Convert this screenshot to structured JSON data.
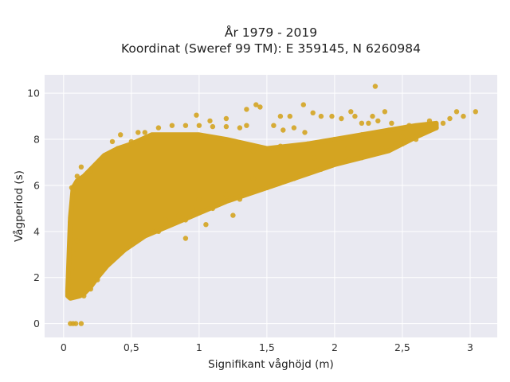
{
  "chart_data": {
    "type": "scatter",
    "title_lines": [
      "År 1979 - 2019",
      "Koordinat (Sweref 99 TM): E 359145, N 6260984"
    ],
    "xlabel": "Signifikant våghöjd (m)",
    "ylabel": "Vågperiod (s)",
    "xlim": [
      -0.14,
      3.2
    ],
    "ylim": [
      -0.6,
      10.8
    ],
    "x_ticks": [
      0,
      0.5,
      1,
      1.5,
      2,
      2.5,
      3
    ],
    "x_tick_labels": [
      "0",
      "0,5",
      "1",
      "1,5",
      "2",
      "2,5",
      "3"
    ],
    "y_ticks": [
      0,
      2,
      4,
      6,
      8,
      10
    ],
    "y_tick_labels": [
      "0",
      "2",
      "4",
      "6",
      "8",
      "10"
    ],
    "grid": true,
    "marker_color": "#D4A421",
    "plot_background": "#E9E9F1",
    "points": [
      [
        0.05,
        0.0
      ],
      [
        0.07,
        0.0
      ],
      [
        0.09,
        0.0
      ],
      [
        0.13,
        0.0
      ],
      [
        0.04,
        1.3
      ],
      [
        0.05,
        1.8
      ],
      [
        0.06,
        2.4
      ],
      [
        0.08,
        3.0
      ],
      [
        0.1,
        3.6
      ],
      [
        0.05,
        4.4
      ],
      [
        0.07,
        5.2
      ],
      [
        0.06,
        5.9
      ],
      [
        0.1,
        6.4
      ],
      [
        0.13,
        6.8
      ],
      [
        0.15,
        1.2
      ],
      [
        0.2,
        1.5
      ],
      [
        0.25,
        1.9
      ],
      [
        0.3,
        2.4
      ],
      [
        0.2,
        6.6
      ],
      [
        0.3,
        7.2
      ],
      [
        0.4,
        7.6
      ],
      [
        0.5,
        7.9
      ],
      [
        0.6,
        8.3
      ],
      [
        0.7,
        8.5
      ],
      [
        0.8,
        8.6
      ],
      [
        0.9,
        8.6
      ],
      [
        1.0,
        8.6
      ],
      [
        1.1,
        8.55
      ],
      [
        1.2,
        8.55
      ],
      [
        1.3,
        8.5
      ],
      [
        1.35,
        8.6
      ],
      [
        0.5,
        3.6
      ],
      [
        0.7,
        4.0
      ],
      [
        0.9,
        4.5
      ],
      [
        1.1,
        5.0
      ],
      [
        1.3,
        5.4
      ],
      [
        1.5,
        5.9
      ],
      [
        1.7,
        6.3
      ],
      [
        1.9,
        6.7
      ],
      [
        2.1,
        7.1
      ],
      [
        2.3,
        7.4
      ],
      [
        2.5,
        7.8
      ],
      [
        2.6,
        8.0
      ],
      [
        1.4,
        7.5
      ],
      [
        1.6,
        7.7
      ],
      [
        1.8,
        7.8
      ],
      [
        2.0,
        8.0
      ],
      [
        2.2,
        8.2
      ],
      [
        2.4,
        8.4
      ],
      [
        2.55,
        8.6
      ],
      [
        2.7,
        8.8
      ],
      [
        2.85,
        8.9
      ],
      [
        2.95,
        9.0
      ],
      [
        2.9,
        9.2
      ],
      [
        3.04,
        9.2
      ],
      [
        0.98,
        9.05
      ],
      [
        1.08,
        8.8
      ],
      [
        1.2,
        8.9
      ],
      [
        1.35,
        9.3
      ],
      [
        1.42,
        9.5
      ],
      [
        1.45,
        9.4
      ],
      [
        1.6,
        9.0
      ],
      [
        1.67,
        9.0
      ],
      [
        1.77,
        9.5
      ],
      [
        1.84,
        9.15
      ],
      [
        1.9,
        9.0
      ],
      [
        1.98,
        9.0
      ],
      [
        2.05,
        8.9
      ],
      [
        2.12,
        9.2
      ],
      [
        2.15,
        9.0
      ],
      [
        2.2,
        8.7
      ],
      [
        2.25,
        8.7
      ],
      [
        2.28,
        9.0
      ],
      [
        2.32,
        8.8
      ],
      [
        2.37,
        9.2
      ],
      [
        2.3,
        10.3
      ],
      [
        2.42,
        8.7
      ],
      [
        1.55,
        8.6
      ],
      [
        1.62,
        8.4
      ],
      [
        1.7,
        8.5
      ],
      [
        1.78,
        8.3
      ],
      [
        0.42,
        8.2
      ],
      [
        0.55,
        8.3
      ],
      [
        0.36,
        7.9
      ],
      [
        0.65,
        4.0
      ],
      [
        0.75,
        4.5
      ],
      [
        0.85,
        4.7
      ],
      [
        0.95,
        5.0
      ],
      [
        1.05,
        4.3
      ],
      [
        0.9,
        3.7
      ],
      [
        1.2,
        5.6
      ],
      [
        1.0,
        5.4
      ],
      [
        1.25,
        4.7
      ],
      [
        1.4,
        6.3
      ],
      [
        1.6,
        6.2
      ],
      [
        1.75,
        6.5
      ],
      [
        2.0,
        7.0
      ],
      [
        2.2,
        7.2
      ],
      [
        2.45,
        7.8
      ],
      [
        2.5,
        8.1
      ],
      [
        2.35,
        7.6
      ],
      [
        2.1,
        7.6
      ],
      [
        1.85,
        7.2
      ],
      [
        2.65,
        8.4
      ],
      [
        2.75,
        8.5
      ],
      [
        2.8,
        8.7
      ]
    ]
  }
}
